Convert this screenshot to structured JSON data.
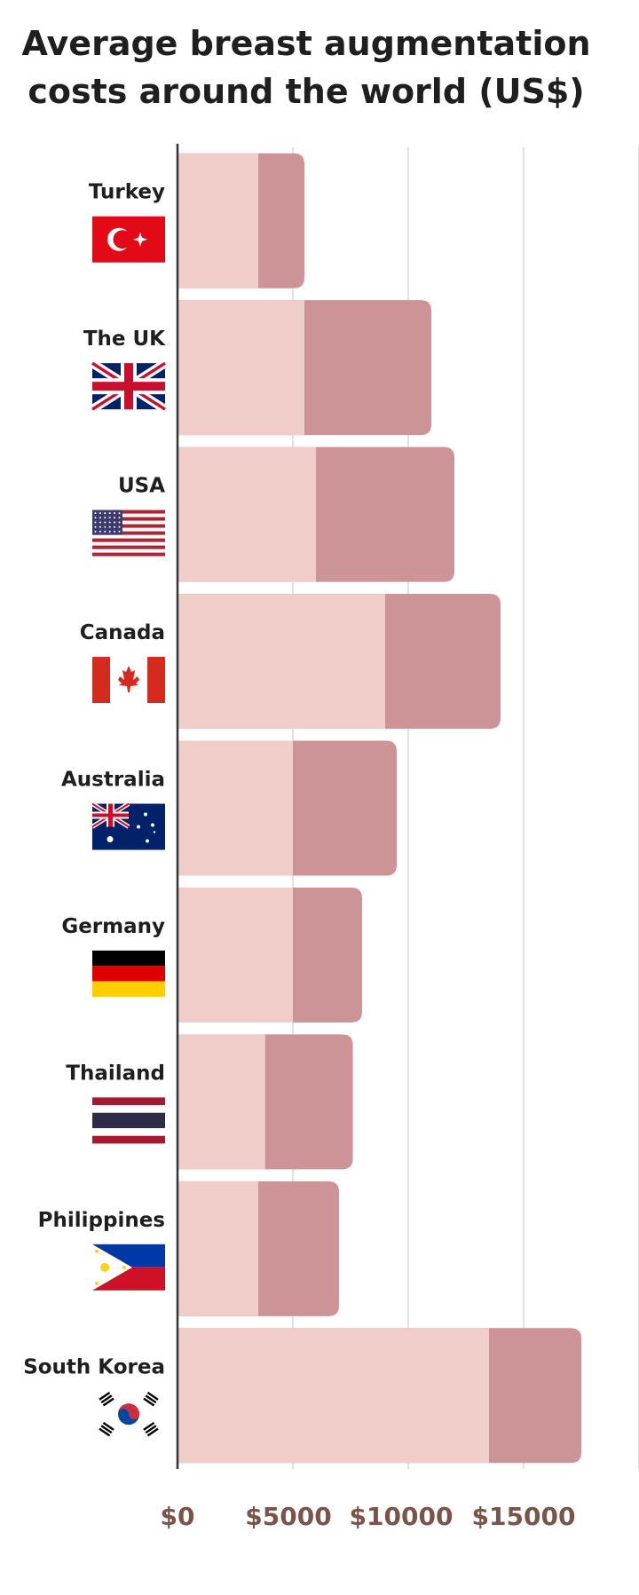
{
  "title_lines": [
    "Average breast augmentation",
    "costs around the world (US$)"
  ],
  "chart_data": {
    "type": "bar",
    "orientation": "horizontal",
    "stacked": true,
    "title": "Average breast augmentation costs around the world (US$)",
    "xlabel": "",
    "ylabel": "",
    "xlim": [
      0,
      18500
    ],
    "xticks": [
      0,
      5000,
      10000,
      15000
    ],
    "xtick_labels": [
      "$0",
      "$5000",
      "$10000",
      "$15000"
    ],
    "grid": true,
    "categories": [
      "Turkey",
      "The UK",
      "USA",
      "Canada",
      "Australia",
      "Germany",
      "Thailand",
      "Philippines",
      "South Korea"
    ],
    "flags": [
      "flag-turkey",
      "flag-uk",
      "flag-usa",
      "flag-canada",
      "flag-australia",
      "flag-germany",
      "flag-thailand",
      "flag-philippines",
      "flag-south-korea"
    ],
    "series": [
      {
        "values": [
          3500,
          5500,
          6000,
          9000,
          5000,
          5000,
          3800,
          3500,
          13500
        ],
        "color": "#f0cdc8"
      },
      {
        "values": [
          2000,
          5500,
          6000,
          5000,
          4500,
          3000,
          3800,
          3500,
          4000
        ],
        "color": "#cc9497"
      }
    ]
  },
  "colors": {
    "axis_line": "#333333",
    "grid": "#d9d9d9",
    "label": "#1f1f1f",
    "tick": "#7a5448"
  }
}
